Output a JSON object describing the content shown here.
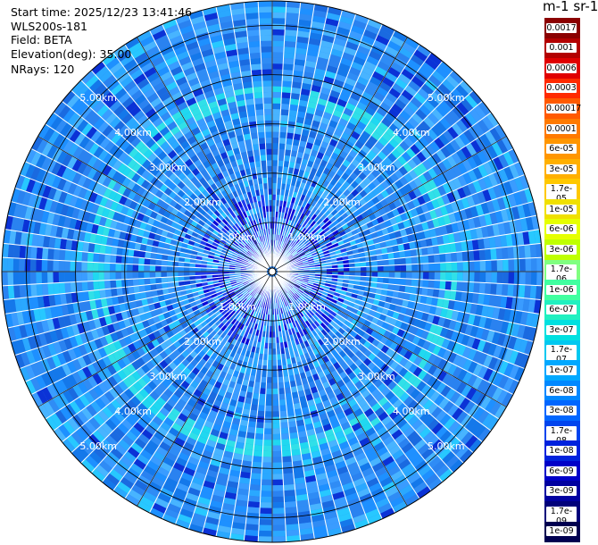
{
  "header": {
    "start_time": "Start time: 2025/12/23 13:41:46",
    "instrument": "WLS200s-181",
    "field": "Field: BETA",
    "elevation": "Elevation(deg): 35.00",
    "nrays": "NRays: 120"
  },
  "colorbar": {
    "unit_title": "m-1 sr-1",
    "labels": [
      "0.0017",
      "0.001",
      "0.0006",
      "0.0003",
      "0.00017",
      "0.0001",
      "6e-05",
      "3e-05",
      "1.7e-05",
      "1e-05",
      "6e-06",
      "3e-06",
      "1.7e-06",
      "1e-06",
      "6e-07",
      "3e-07",
      "1.7e-07",
      "1e-07",
      "6e-08",
      "3e-08",
      "1.7e-08",
      "1e-08",
      "6e-09",
      "3e-09",
      "1.7e-09",
      "1e-09"
    ],
    "colors": [
      "#8b0000",
      "#b30000",
      "#e00000",
      "#ff2a00",
      "#ff5a00",
      "#ff7a00",
      "#ff9600",
      "#ffb000",
      "#ffc800",
      "#f0e000",
      "#e6ff00",
      "#bfff00",
      "#80ff80",
      "#40ffa0",
      "#20f0c0",
      "#00e0e0",
      "#00c8f0",
      "#00a8ff",
      "#0088ff",
      "#0066ff",
      "#0044ee",
      "#0022dd",
      "#0000c8",
      "#0000a0",
      "#00007a",
      "#000050"
    ]
  },
  "chart_data": {
    "type": "ppi",
    "field": "BETA",
    "nrays": 120,
    "elevation_deg": 35.0,
    "max_range_km": 5.5,
    "range_rings_km": [
      1.0,
      2.0,
      3.0,
      4.0,
      5.0
    ],
    "ring_labels": [
      "1.00km",
      "2.00km",
      "3.00km",
      "4.00km",
      "5.00km"
    ],
    "spoke_angles_deg": [
      0,
      30,
      60,
      90,
      120,
      150,
      180,
      210,
      240,
      270,
      300,
      330
    ],
    "enhanced_band_km": [
      3.4,
      3.8
    ],
    "typical_value_range": [
      "1e-08",
      "1e-07"
    ]
  }
}
